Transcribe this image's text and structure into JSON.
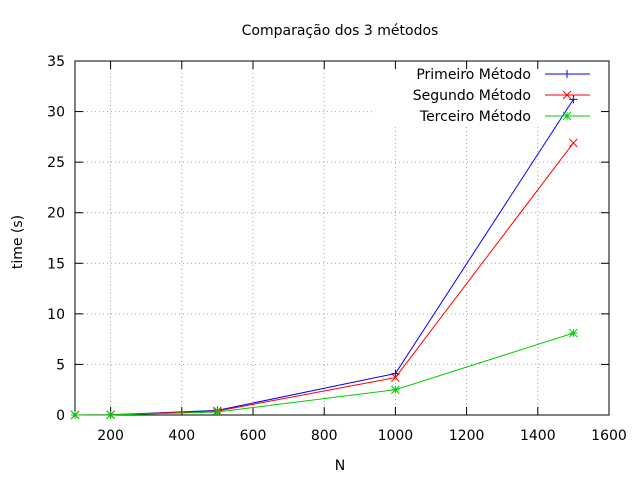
{
  "chart_data": {
    "type": "line",
    "title": "Comparação dos 3 métodos",
    "xlabel": "N",
    "ylabel": "time (s)",
    "xlim": [
      100,
      1600
    ],
    "ylim": [
      0,
      35
    ],
    "xticks": [
      200,
      400,
      600,
      800,
      1000,
      1200,
      1400,
      1600
    ],
    "yticks": [
      0,
      5,
      10,
      15,
      20,
      25,
      30,
      35
    ],
    "grid": true,
    "legend_position": "top-right",
    "series": [
      {
        "name": "Primeiro Método",
        "color": "#0000ff",
        "marker": "plus",
        "x": [
          100,
          200,
          500,
          1000,
          1500
        ],
        "y": [
          0.0,
          0.02,
          0.45,
          4.1,
          31.2
        ]
      },
      {
        "name": "Segundo Método",
        "color": "#ff0000",
        "marker": "cross",
        "x": [
          100,
          200,
          500,
          1000,
          1500
        ],
        "y": [
          0.0,
          0.02,
          0.4,
          3.7,
          26.9
        ]
      },
      {
        "name": "Terceiro Método",
        "color": "#00cc00",
        "marker": "star",
        "x": [
          100,
          200,
          500,
          1000,
          1500
        ],
        "y": [
          0.0,
          0.01,
          0.3,
          2.5,
          8.1
        ]
      }
    ]
  }
}
